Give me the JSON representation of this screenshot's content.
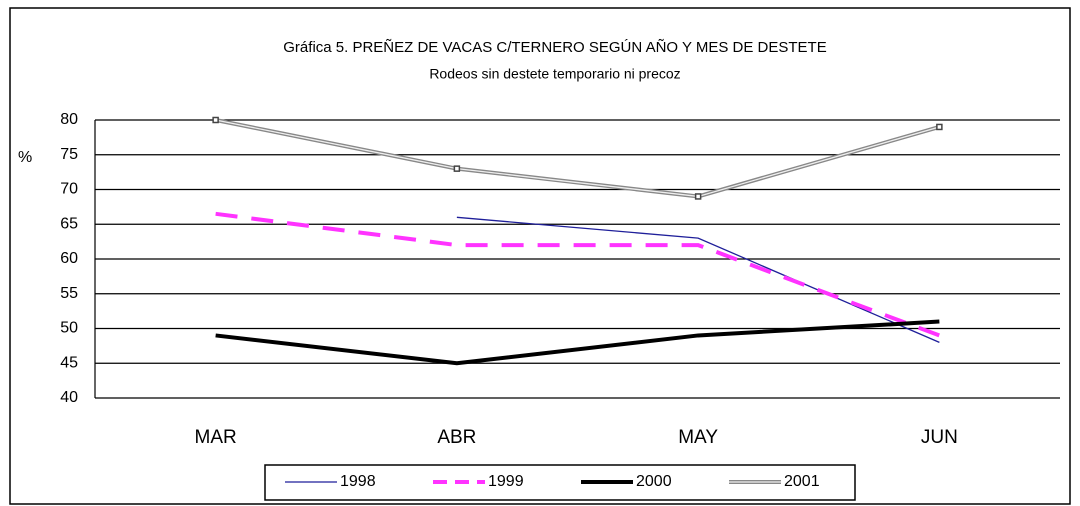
{
  "chart_data": {
    "type": "line",
    "title": "Gráfica 5.  PREÑEZ DE VACAS C/TERNERO SEGÚN AÑO Y MES DE DESTETE",
    "subtitle": "Rodeos sin destete temporario ni precoz",
    "y_label": "%",
    "categories": [
      "MAR",
      "ABR",
      "MAY",
      "JUN"
    ],
    "series": [
      {
        "name": "1998",
        "color": "#1f1f9a",
        "values": [
          null,
          66,
          63,
          48
        ]
      },
      {
        "name": "1999",
        "color": "#ff33ff",
        "values": [
          66.5,
          62,
          62,
          49
        ]
      },
      {
        "name": "2000",
        "color": "#000000",
        "values": [
          49,
          45,
          49,
          51
        ]
      },
      {
        "name": "2001",
        "color": "#888888",
        "values": [
          80,
          73,
          69,
          79
        ]
      }
    ],
    "ylim": [
      40,
      80
    ],
    "yticks": [
      40,
      45,
      50,
      55,
      60,
      65,
      70,
      75,
      80
    ],
    "grid": true
  }
}
